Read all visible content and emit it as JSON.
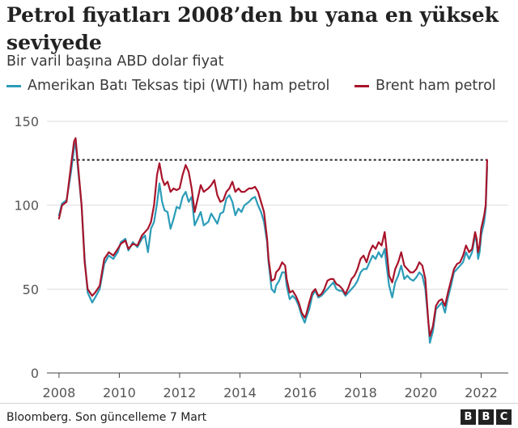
{
  "header": {
    "title": "Petrol fiyatları 2008’den bu yana en yüksek seviyede",
    "subtitle": "Bir varil başına ABD dolar fiyat"
  },
  "footer": {
    "source": "Bloomberg. Son güncelleme 7 Mart",
    "logo_letters": [
      "B",
      "B",
      "C"
    ]
  },
  "chart_data": {
    "type": "line",
    "title": "Petrol fiyatları 2008’den bu yana en yüksek seviyede",
    "subtitle": "Bir varil başına ABD dolar fiyat",
    "xlabel": "",
    "ylabel": "",
    "xlim": [
      2007.6,
      2022.9
    ],
    "ylim": [
      0,
      150
    ],
    "yticks": [
      0,
      50,
      100,
      150
    ],
    "xticks": [
      2008,
      2010,
      2012,
      2014,
      2016,
      2018,
      2020,
      2022
    ],
    "grid": true,
    "legend_position": "top",
    "reference_line": {
      "value": 127,
      "x_from": 2008.45,
      "x_to": 2022.2,
      "style": "dotted"
    },
    "series": [
      {
        "name": "Amerikan Batı Teksas tipi (WTI) ham petrol",
        "color": "#2b9cb8",
        "points": [
          [
            2008.0,
            94
          ],
          [
            2008.1,
            101
          ],
          [
            2008.25,
            103
          ],
          [
            2008.4,
            120
          ],
          [
            2008.5,
            134
          ],
          [
            2008.55,
            137
          ],
          [
            2008.65,
            118
          ],
          [
            2008.75,
            100
          ],
          [
            2008.85,
            68
          ],
          [
            2008.95,
            48
          ],
          [
            2009.1,
            42
          ],
          [
            2009.2,
            45
          ],
          [
            2009.35,
            50
          ],
          [
            2009.5,
            65
          ],
          [
            2009.65,
            70
          ],
          [
            2009.8,
            68
          ],
          [
            2009.95,
            72
          ],
          [
            2010.05,
            78
          ],
          [
            2010.2,
            80
          ],
          [
            2010.3,
            73
          ],
          [
            2010.45,
            78
          ],
          [
            2010.6,
            75
          ],
          [
            2010.75,
            80
          ],
          [
            2010.85,
            82
          ],
          [
            2010.95,
            72
          ],
          [
            2011.05,
            86
          ],
          [
            2011.15,
            90
          ],
          [
            2011.25,
            101
          ],
          [
            2011.33,
            113
          ],
          [
            2011.42,
            102
          ],
          [
            2011.5,
            97
          ],
          [
            2011.6,
            96
          ],
          [
            2011.7,
            86
          ],
          [
            2011.8,
            92
          ],
          [
            2011.9,
            99
          ],
          [
            2012.0,
            98
          ],
          [
            2012.1,
            105
          ],
          [
            2012.2,
            108
          ],
          [
            2012.3,
            102
          ],
          [
            2012.4,
            105
          ],
          [
            2012.5,
            88
          ],
          [
            2012.6,
            92
          ],
          [
            2012.7,
            96
          ],
          [
            2012.8,
            88
          ],
          [
            2012.95,
            90
          ],
          [
            2013.05,
            95
          ],
          [
            2013.15,
            92
          ],
          [
            2013.25,
            89
          ],
          [
            2013.35,
            95
          ],
          [
            2013.45,
            96
          ],
          [
            2013.55,
            104
          ],
          [
            2013.65,
            106
          ],
          [
            2013.75,
            102
          ],
          [
            2013.85,
            94
          ],
          [
            2013.95,
            98
          ],
          [
            2014.05,
            96
          ],
          [
            2014.15,
            100
          ],
          [
            2014.3,
            102
          ],
          [
            2014.4,
            104
          ],
          [
            2014.5,
            105
          ],
          [
            2014.6,
            100
          ],
          [
            2014.7,
            96
          ],
          [
            2014.8,
            90
          ],
          [
            2014.9,
            78
          ],
          [
            2014.95,
            66
          ],
          [
            2015.05,
            50
          ],
          [
            2015.15,
            48
          ],
          [
            2015.2,
            52
          ],
          [
            2015.3,
            55
          ],
          [
            2015.4,
            60
          ],
          [
            2015.5,
            60
          ],
          [
            2015.55,
            52
          ],
          [
            2015.65,
            44
          ],
          [
            2015.75,
            46
          ],
          [
            2015.85,
            44
          ],
          [
            2015.95,
            40
          ],
          [
            2016.05,
            34
          ],
          [
            2016.15,
            30
          ],
          [
            2016.2,
            33
          ],
          [
            2016.3,
            38
          ],
          [
            2016.4,
            46
          ],
          [
            2016.5,
            49
          ],
          [
            2016.6,
            45
          ],
          [
            2016.7,
            46
          ],
          [
            2016.8,
            48
          ],
          [
            2016.9,
            50
          ],
          [
            2017.0,
            52
          ],
          [
            2017.1,
            54
          ],
          [
            2017.2,
            50
          ],
          [
            2017.3,
            49
          ],
          [
            2017.4,
            49
          ],
          [
            2017.5,
            46
          ],
          [
            2017.6,
            48
          ],
          [
            2017.7,
            50
          ],
          [
            2017.8,
            52
          ],
          [
            2017.9,
            55
          ],
          [
            2018.0,
            60
          ],
          [
            2018.1,
            62
          ],
          [
            2018.2,
            62
          ],
          [
            2018.3,
            66
          ],
          [
            2018.4,
            70
          ],
          [
            2018.5,
            68
          ],
          [
            2018.6,
            72
          ],
          [
            2018.7,
            69
          ],
          [
            2018.8,
            74
          ],
          [
            2018.85,
            66
          ],
          [
            2018.95,
            52
          ],
          [
            2019.05,
            45
          ],
          [
            2019.15,
            54
          ],
          [
            2019.25,
            58
          ],
          [
            2019.35,
            64
          ],
          [
            2019.45,
            56
          ],
          [
            2019.55,
            58
          ],
          [
            2019.65,
            56
          ],
          [
            2019.75,
            55
          ],
          [
            2019.85,
            57
          ],
          [
            2019.95,
            60
          ],
          [
            2020.05,
            58
          ],
          [
            2020.15,
            50
          ],
          [
            2020.25,
            30
          ],
          [
            2020.3,
            18
          ],
          [
            2020.4,
            25
          ],
          [
            2020.5,
            38
          ],
          [
            2020.6,
            40
          ],
          [
            2020.7,
            42
          ],
          [
            2020.8,
            36
          ],
          [
            2020.9,
            45
          ],
          [
            2021.0,
            52
          ],
          [
            2021.1,
            60
          ],
          [
            2021.2,
            62
          ],
          [
            2021.3,
            64
          ],
          [
            2021.4,
            66
          ],
          [
            2021.5,
            72
          ],
          [
            2021.6,
            68
          ],
          [
            2021.7,
            72
          ],
          [
            2021.8,
            82
          ],
          [
            2021.85,
            78
          ],
          [
            2021.9,
            68
          ],
          [
            2021.95,
            72
          ],
          [
            2022.0,
            82
          ],
          [
            2022.1,
            90
          ],
          [
            2022.15,
            98
          ],
          [
            2022.2,
            123
          ]
        ]
      },
      {
        "name": "Brent ham petrol",
        "color": "#a8142b",
        "points": [
          [
            2008.0,
            92
          ],
          [
            2008.1,
            100
          ],
          [
            2008.25,
            102
          ],
          [
            2008.4,
            124
          ],
          [
            2008.5,
            138
          ],
          [
            2008.55,
            140
          ],
          [
            2008.65,
            120
          ],
          [
            2008.75,
            100
          ],
          [
            2008.85,
            66
          ],
          [
            2008.95,
            50
          ],
          [
            2009.1,
            46
          ],
          [
            2009.2,
            48
          ],
          [
            2009.35,
            52
          ],
          [
            2009.5,
            68
          ],
          [
            2009.65,
            72
          ],
          [
            2009.8,
            70
          ],
          [
            2009.95,
            74
          ],
          [
            2010.05,
            77
          ],
          [
            2010.2,
            79
          ],
          [
            2010.3,
            74
          ],
          [
            2010.45,
            77
          ],
          [
            2010.6,
            76
          ],
          [
            2010.75,
            82
          ],
          [
            2010.85,
            84
          ],
          [
            2010.95,
            86
          ],
          [
            2011.05,
            90
          ],
          [
            2011.15,
            100
          ],
          [
            2011.25,
            118
          ],
          [
            2011.33,
            125
          ],
          [
            2011.42,
            116
          ],
          [
            2011.5,
            112
          ],
          [
            2011.6,
            114
          ],
          [
            2011.7,
            108
          ],
          [
            2011.8,
            110
          ],
          [
            2011.9,
            109
          ],
          [
            2012.0,
            110
          ],
          [
            2012.1,
            118
          ],
          [
            2012.2,
            124
          ],
          [
            2012.3,
            120
          ],
          [
            2012.4,
            110
          ],
          [
            2012.5,
            96
          ],
          [
            2012.6,
            104
          ],
          [
            2012.7,
            112
          ],
          [
            2012.8,
            108
          ],
          [
            2012.95,
            110
          ],
          [
            2013.05,
            112
          ],
          [
            2013.15,
            115
          ],
          [
            2013.25,
            106
          ],
          [
            2013.35,
            102
          ],
          [
            2013.45,
            103
          ],
          [
            2013.55,
            108
          ],
          [
            2013.65,
            110
          ],
          [
            2013.75,
            114
          ],
          [
            2013.85,
            108
          ],
          [
            2013.95,
            110
          ],
          [
            2014.05,
            108
          ],
          [
            2014.15,
            108
          ],
          [
            2014.3,
            110
          ],
          [
            2014.4,
            110
          ],
          [
            2014.5,
            111
          ],
          [
            2014.6,
            108
          ],
          [
            2014.7,
            102
          ],
          [
            2014.8,
            96
          ],
          [
            2014.9,
            80
          ],
          [
            2014.95,
            68
          ],
          [
            2015.05,
            55
          ],
          [
            2015.15,
            56
          ],
          [
            2015.2,
            60
          ],
          [
            2015.3,
            62
          ],
          [
            2015.4,
            66
          ],
          [
            2015.5,
            64
          ],
          [
            2015.55,
            56
          ],
          [
            2015.65,
            48
          ],
          [
            2015.75,
            49
          ],
          [
            2015.85,
            46
          ],
          [
            2015.95,
            42
          ],
          [
            2016.05,
            36
          ],
          [
            2016.15,
            33
          ],
          [
            2016.2,
            35
          ],
          [
            2016.3,
            42
          ],
          [
            2016.4,
            48
          ],
          [
            2016.5,
            50
          ],
          [
            2016.6,
            46
          ],
          [
            2016.7,
            47
          ],
          [
            2016.8,
            50
          ],
          [
            2016.9,
            55
          ],
          [
            2017.0,
            56
          ],
          [
            2017.1,
            56
          ],
          [
            2017.2,
            53
          ],
          [
            2017.3,
            52
          ],
          [
            2017.4,
            50
          ],
          [
            2017.5,
            47
          ],
          [
            2017.6,
            51
          ],
          [
            2017.7,
            56
          ],
          [
            2017.8,
            58
          ],
          [
            2017.9,
            62
          ],
          [
            2018.0,
            68
          ],
          [
            2018.1,
            70
          ],
          [
            2018.2,
            66
          ],
          [
            2018.3,
            72
          ],
          [
            2018.4,
            76
          ],
          [
            2018.5,
            74
          ],
          [
            2018.6,
            78
          ],
          [
            2018.7,
            76
          ],
          [
            2018.8,
            84
          ],
          [
            2018.85,
            76
          ],
          [
            2018.95,
            58
          ],
          [
            2019.05,
            54
          ],
          [
            2019.15,
            62
          ],
          [
            2019.25,
            66
          ],
          [
            2019.35,
            72
          ],
          [
            2019.45,
            64
          ],
          [
            2019.55,
            62
          ],
          [
            2019.65,
            60
          ],
          [
            2019.75,
            60
          ],
          [
            2019.85,
            62
          ],
          [
            2019.95,
            66
          ],
          [
            2020.05,
            64
          ],
          [
            2020.15,
            56
          ],
          [
            2020.25,
            30
          ],
          [
            2020.3,
            22
          ],
          [
            2020.4,
            28
          ],
          [
            2020.5,
            40
          ],
          [
            2020.6,
            43
          ],
          [
            2020.7,
            44
          ],
          [
            2020.8,
            40
          ],
          [
            2020.9,
            48
          ],
          [
            2021.0,
            55
          ],
          [
            2021.1,
            62
          ],
          [
            2021.2,
            65
          ],
          [
            2021.3,
            66
          ],
          [
            2021.4,
            70
          ],
          [
            2021.5,
            76
          ],
          [
            2021.6,
            72
          ],
          [
            2021.7,
            74
          ],
          [
            2021.8,
            84
          ],
          [
            2021.85,
            80
          ],
          [
            2021.9,
            72
          ],
          [
            2021.95,
            76
          ],
          [
            2022.0,
            86
          ],
          [
            2022.1,
            94
          ],
          [
            2022.15,
            100
          ],
          [
            2022.2,
            127
          ]
        ]
      }
    ]
  }
}
